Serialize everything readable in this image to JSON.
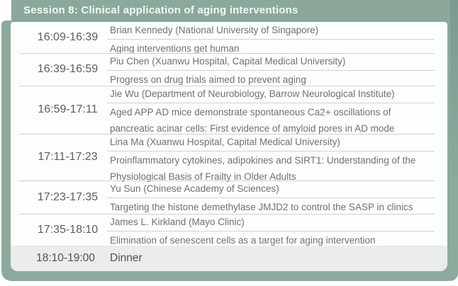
{
  "session": {
    "title": "Session 8: Clinical application of aging interventions"
  },
  "schedule": {
    "rows": [
      {
        "time": "16:09-16:39",
        "speaker": "Brian Kennedy (National University of Singapore)",
        "title": "Aging interventions get human"
      },
      {
        "time": "16:39-16:59",
        "speaker": "Piu Chen (Xuanwu Hospital, Capital Medical University)",
        "title": "Progress on drug trials aimed to prevent aging"
      },
      {
        "time": "16:59-17:11",
        "speaker": "Jie Wu (Department of Neurobiology, Barrow Neurological Institute)",
        "title": "Aged APP AD mice demonstrate spontaneous Ca2+ oscillations of",
        "title_line2": "pancreatic acinar cells: First evidence of amyloid pores in AD mode"
      },
      {
        "time": "17:11-17:23",
        "speaker": "Lina Ma (Xuanwu Hospital, Capital Medical University)",
        "title": "Proinflammatory cytokines, adipokines and SIRT1: Understanding of the",
        "title_line2": "Physiological Basis of Frailty in Older Adults"
      },
      {
        "time": "17:23-17:35",
        "speaker": "Yu Sun (Chinese Academy of Sciences)",
        "title": "Targeting the histone demethylase JMJD2 to control the SASP in clinics"
      },
      {
        "time": "17:35-18:10",
        "speaker": "James L. Kirkland (Mayo Clinic)",
        "title": "Elimination of senescent cells as a target for aging intervention"
      }
    ],
    "dinner": {
      "time": "18:10-19:00",
      "label": "Dinner"
    }
  },
  "colors": {
    "sage": "#8CAA9C",
    "sage_dark": "#7C9B8E",
    "panel_bg": "#FCFEFD",
    "dinner_bg": "#EAEDEB",
    "divider": "#CDD2D0",
    "time_text": "#585F61",
    "body_text": "#6C7271",
    "header_text": "#F4F8F5"
  }
}
